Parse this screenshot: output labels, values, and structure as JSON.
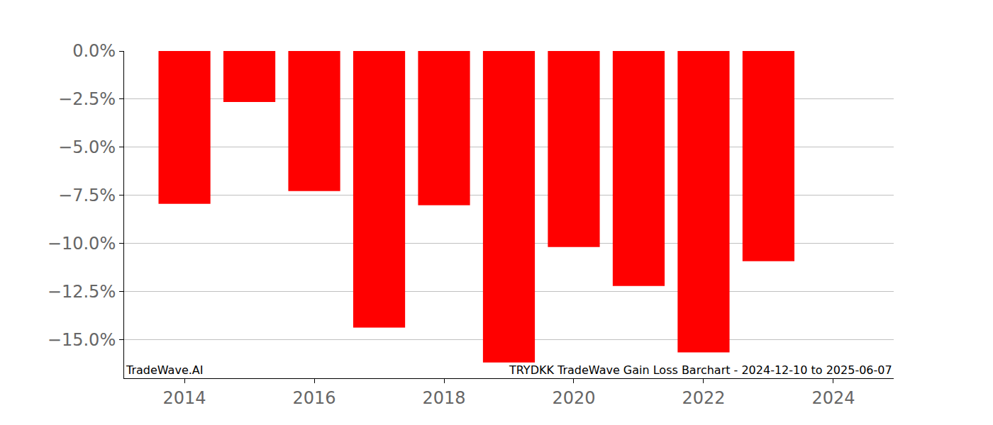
{
  "chart_data": {
    "type": "bar",
    "title": "TRYDKK TradeWave Gain Loss Barchart - 2024-12-10 to 2025-06-07",
    "annotations": [
      "TradeWave.AI"
    ],
    "x": [
      2014,
      2015,
      2016,
      2017,
      2018,
      2019,
      2020,
      2021,
      2022,
      2023
    ],
    "values": [
      -7.94,
      -2.65,
      -7.28,
      -14.37,
      -8.01,
      -16.18,
      -10.18,
      -12.21,
      -15.66,
      -10.92
    ],
    "color": "#ff0000",
    "xlim": [
      2013.07,
      2024.93
    ],
    "xticks": [
      2014,
      2016,
      2018,
      2020,
      2022,
      2024
    ],
    "ylim": [
      -17.0,
      0.0
    ],
    "yticks": [
      {
        "value": 0,
        "label": "0.0%"
      },
      {
        "value": -2.5,
        "label": "−2.5%"
      },
      {
        "value": -5,
        "label": "−5.0%"
      },
      {
        "value": -7.5,
        "label": "−7.5%"
      },
      {
        "value": -10,
        "label": "−10.0%"
      },
      {
        "value": -12.5,
        "label": "−12.5%"
      },
      {
        "value": -15,
        "label": "−15.0%"
      }
    ],
    "grid": true
  }
}
